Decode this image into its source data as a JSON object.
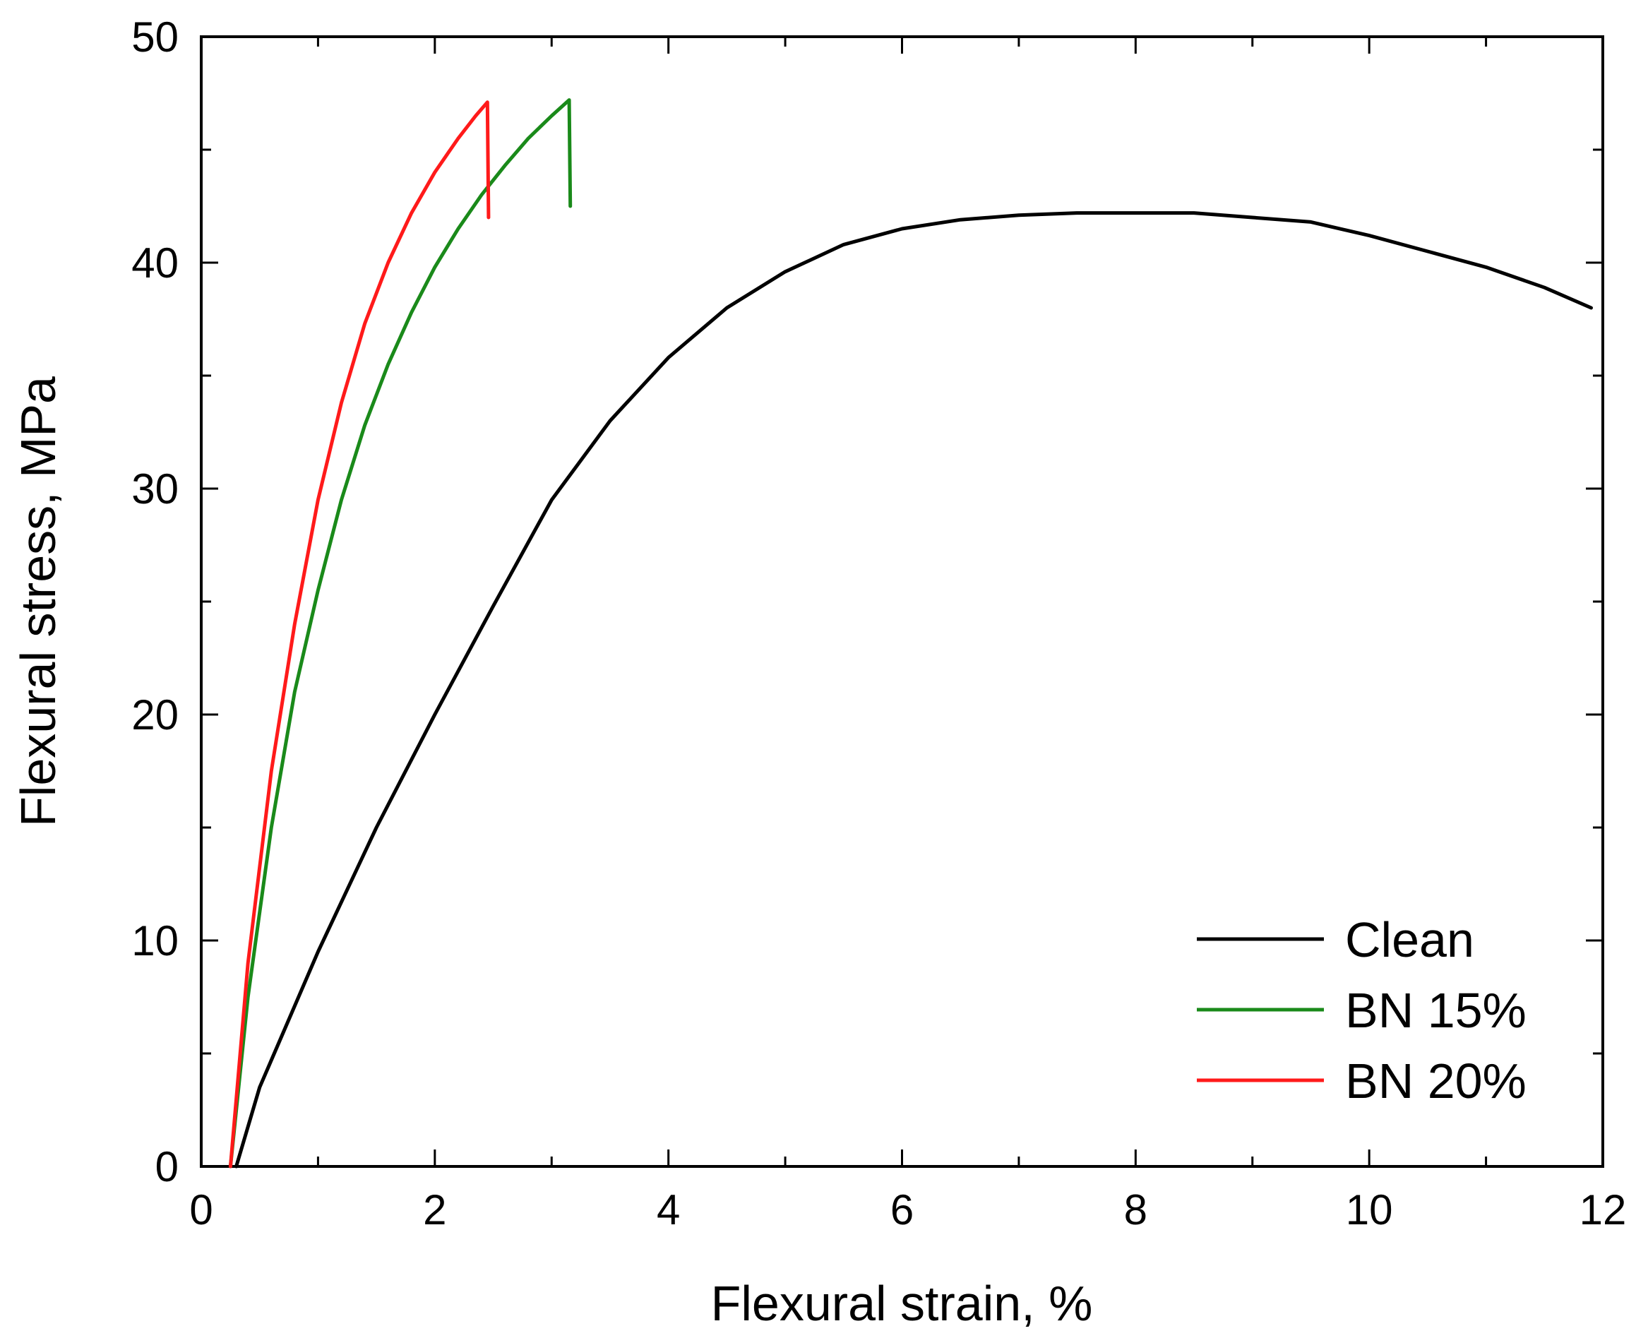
{
  "chart_data": {
    "type": "line",
    "title": "",
    "xlabel": "Flexural strain, %",
    "ylabel": "Flexural stress, MPa",
    "xlim": [
      0,
      12
    ],
    "ylim": [
      0,
      50
    ],
    "xticks": [
      0,
      2,
      4,
      6,
      8,
      10,
      12
    ],
    "yticks": [
      0,
      10,
      20,
      30,
      40,
      50
    ],
    "grid": false,
    "legend_position": "bottom-right",
    "series": [
      {
        "name": "Clean",
        "color": "#000000",
        "x": [
          0.3,
          0.5,
          1.0,
          1.5,
          2.0,
          2.5,
          3.0,
          3.5,
          4.0,
          4.5,
          5.0,
          5.5,
          6.0,
          6.5,
          7.0,
          7.5,
          8.0,
          8.5,
          9.0,
          9.5,
          10.0,
          10.5,
          11.0,
          11.5,
          11.9
        ],
        "y": [
          0,
          3.5,
          9.5,
          15.0,
          20.0,
          24.8,
          29.5,
          33.0,
          35.8,
          38.0,
          39.6,
          40.8,
          41.5,
          41.9,
          42.1,
          42.2,
          42.2,
          42.2,
          42.0,
          41.8,
          41.2,
          40.5,
          39.8,
          38.9,
          38.0
        ]
      },
      {
        "name": "BN 15%",
        "color": "#1a8a1a",
        "x": [
          0.25,
          0.4,
          0.6,
          0.8,
          1.0,
          1.2,
          1.4,
          1.6,
          1.8,
          2.0,
          2.2,
          2.4,
          2.6,
          2.8,
          3.0,
          3.15,
          3.16
        ],
        "y": [
          0,
          7.5,
          15.0,
          21.0,
          25.5,
          29.5,
          32.8,
          35.5,
          37.8,
          39.8,
          41.5,
          43.0,
          44.3,
          45.5,
          46.5,
          47.2,
          42.5
        ]
      },
      {
        "name": "BN 20%",
        "color": "#ff1a1a",
        "x": [
          0.25,
          0.4,
          0.6,
          0.8,
          1.0,
          1.2,
          1.4,
          1.6,
          1.8,
          2.0,
          2.2,
          2.35,
          2.45,
          2.46
        ],
        "y": [
          0,
          9.0,
          17.5,
          24.0,
          29.5,
          33.8,
          37.3,
          40.0,
          42.2,
          44.0,
          45.5,
          46.5,
          47.1,
          42.0
        ]
      }
    ]
  }
}
